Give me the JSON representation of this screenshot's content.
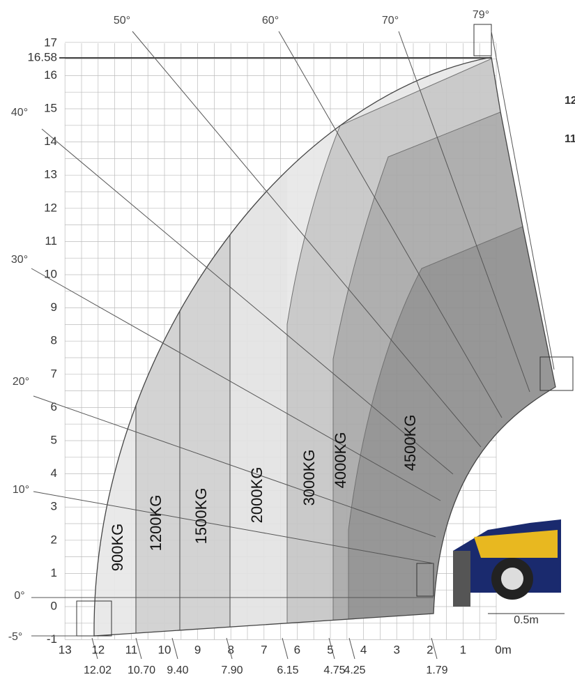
{
  "y_axis": {
    "ticks": [
      "17",
      "16.58",
      "16",
      "15",
      "14",
      "13",
      "12",
      "11",
      "10",
      "9",
      "8",
      "7",
      "6",
      "5",
      "4",
      "3",
      "2",
      "1",
      "0",
      "-1"
    ]
  },
  "x_axis": {
    "ticks": [
      "13",
      "12",
      "11",
      "10",
      "9",
      "8",
      "7",
      "6",
      "5",
      "4",
      "3",
      "2",
      "1",
      "0m"
    ]
  },
  "distances": [
    "12.02",
    "10.70",
    "9.40",
    "7.90",
    "6.15",
    "4.75",
    "4.25",
    "1.79"
  ],
  "angles": [
    "-5°",
    "0°",
    "10°",
    "20°",
    "30°",
    "40°",
    "50°",
    "60°",
    "70°",
    "79°"
  ],
  "loads": [
    "900KG",
    "1200KG",
    "1500KG",
    "2000KG",
    "3000KG",
    "4000KG",
    "4500KG"
  ],
  "scale_label": "0.5m",
  "side_labels": [
    "12",
    "11"
  ]
}
